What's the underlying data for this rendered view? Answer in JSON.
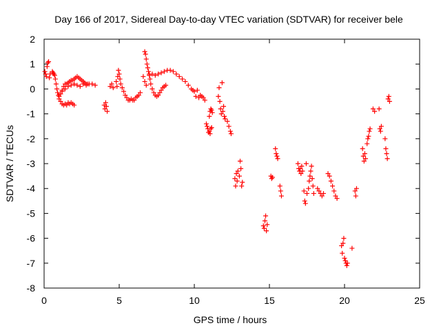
{
  "chart_data": {
    "type": "scatter",
    "title": "Day 166 of 2017, Sidereal Day-to-day VTEC variation (SDTVAR) for receiver bele",
    "xlabel": "GPS time / hours",
    "ylabel": "SDTVAR / TECUs",
    "xlim": [
      0,
      25
    ],
    "ylim": [
      -8,
      2
    ],
    "xticks": [
      0,
      5,
      10,
      15,
      20,
      25
    ],
    "yticks": [
      2,
      1,
      0,
      -1,
      -2,
      -3,
      -4,
      -5,
      -6,
      -7,
      -8
    ],
    "grid": false,
    "marker": "plus",
    "color": "#ff0000",
    "series": [
      {
        "name": "SDTVAR",
        "points": [
          [
            0.05,
            0.7
          ],
          [
            0.1,
            0.6
          ],
          [
            0.15,
            0.5
          ],
          [
            0.2,
            0.9
          ],
          [
            0.25,
            1.05
          ],
          [
            0.3,
            1.1
          ],
          [
            0.35,
            0.45
          ],
          [
            0.4,
            0.6
          ],
          [
            0.55,
            0.7
          ],
          [
            0.6,
            0.65
          ],
          [
            0.65,
            0.6
          ],
          [
            0.7,
            0.55
          ],
          [
            0.75,
            0.4
          ],
          [
            0.8,
            0.2
          ],
          [
            0.85,
            0.0
          ],
          [
            0.9,
            -0.15
          ],
          [
            0.95,
            -0.25
          ],
          [
            1.0,
            -0.3
          ],
          [
            1.1,
            -0.2
          ],
          [
            1.2,
            -0.05
          ],
          [
            1.3,
            0.1
          ],
          [
            1.4,
            0.2
          ],
          [
            1.5,
            0.2
          ],
          [
            1.6,
            0.25
          ],
          [
            1.7,
            0.3
          ],
          [
            1.8,
            0.35
          ],
          [
            1.9,
            0.35
          ],
          [
            2.0,
            0.4
          ],
          [
            2.1,
            0.45
          ],
          [
            2.2,
            0.5
          ],
          [
            2.3,
            0.45
          ],
          [
            2.4,
            0.4
          ],
          [
            2.5,
            0.35
          ],
          [
            2.6,
            0.3
          ],
          [
            2.7,
            0.25
          ],
          [
            2.8,
            0.2
          ],
          [
            2.9,
            0.2
          ],
          [
            3.0,
            0.2
          ],
          [
            3.2,
            0.2
          ],
          [
            3.4,
            0.15
          ],
          [
            1.0,
            -0.4
          ],
          [
            1.1,
            -0.5
          ],
          [
            1.2,
            -0.6
          ],
          [
            1.3,
            -0.65
          ],
          [
            1.4,
            -0.6
          ],
          [
            1.5,
            -0.65
          ],
          [
            1.6,
            -0.55
          ],
          [
            1.7,
            -0.6
          ],
          [
            1.8,
            -0.55
          ],
          [
            1.9,
            -0.6
          ],
          [
            2.0,
            -0.65
          ],
          [
            1.2,
            -0.1
          ],
          [
            1.4,
            0.0
          ],
          [
            1.6,
            0.1
          ],
          [
            1.8,
            0.15
          ],
          [
            2.0,
            0.2
          ],
          [
            2.2,
            0.15
          ],
          [
            2.4,
            0.1
          ],
          [
            2.6,
            0.2
          ],
          [
            2.8,
            0.15
          ],
          [
            4.0,
            -0.65
          ],
          [
            4.05,
            -0.8
          ],
          [
            4.1,
            -0.55
          ],
          [
            4.15,
            -0.7
          ],
          [
            4.2,
            -0.9
          ],
          [
            4.4,
            0.1
          ],
          [
            4.5,
            0.2
          ],
          [
            4.6,
            0.05
          ],
          [
            4.8,
            0.3
          ],
          [
            4.85,
            0.1
          ],
          [
            4.9,
            0.5
          ],
          [
            4.95,
            0.75
          ],
          [
            5.0,
            0.6
          ],
          [
            5.05,
            0.4
          ],
          [
            5.1,
            0.2
          ],
          [
            5.2,
            0.05
          ],
          [
            5.3,
            -0.1
          ],
          [
            5.4,
            -0.25
          ],
          [
            5.5,
            -0.35
          ],
          [
            5.6,
            -0.45
          ],
          [
            5.7,
            -0.45
          ],
          [
            5.8,
            -0.4
          ],
          [
            5.9,
            -0.45
          ],
          [
            6.0,
            -0.45
          ],
          [
            6.1,
            -0.35
          ],
          [
            6.2,
            -0.3
          ],
          [
            6.3,
            -0.25
          ],
          [
            6.4,
            -0.15
          ],
          [
            6.7,
            1.5
          ],
          [
            6.75,
            1.4
          ],
          [
            6.8,
            1.2
          ],
          [
            6.85,
            1.0
          ],
          [
            6.9,
            0.85
          ],
          [
            6.95,
            0.7
          ],
          [
            7.0,
            0.6
          ],
          [
            7.05,
            0.4
          ],
          [
            7.1,
            0.2
          ],
          [
            7.2,
            0.0
          ],
          [
            7.3,
            -0.15
          ],
          [
            7.4,
            -0.25
          ],
          [
            7.5,
            -0.3
          ],
          [
            7.6,
            -0.25
          ],
          [
            7.7,
            -0.15
          ],
          [
            7.8,
            -0.05
          ],
          [
            7.9,
            0.05
          ],
          [
            8.0,
            0.1
          ],
          [
            8.1,
            0.15
          ],
          [
            6.6,
            0.5
          ],
          [
            6.7,
            0.3
          ],
          [
            6.8,
            0.15
          ],
          [
            7.0,
            0.55
          ],
          [
            7.2,
            0.6
          ],
          [
            7.4,
            0.55
          ],
          [
            7.6,
            0.6
          ],
          [
            7.8,
            0.65
          ],
          [
            8.0,
            0.7
          ],
          [
            8.2,
            0.75
          ],
          [
            8.4,
            0.75
          ],
          [
            8.6,
            0.7
          ],
          [
            8.8,
            0.6
          ],
          [
            9.0,
            0.5
          ],
          [
            9.2,
            0.4
          ],
          [
            9.4,
            0.3
          ],
          [
            9.6,
            0.15
          ],
          [
            9.8,
            0.0
          ],
          [
            9.9,
            -0.05
          ],
          [
            10.0,
            -0.1
          ],
          [
            10.1,
            -0.3
          ],
          [
            10.2,
            -0.05
          ],
          [
            10.3,
            -0.35
          ],
          [
            10.4,
            -0.25
          ],
          [
            10.5,
            -0.3
          ],
          [
            10.6,
            -0.35
          ],
          [
            10.7,
            -0.45
          ],
          [
            10.8,
            -1.4
          ],
          [
            10.85,
            -1.5
          ],
          [
            10.9,
            -1.6
          ],
          [
            10.95,
            -1.75
          ],
          [
            11.0,
            -1.7
          ],
          [
            11.05,
            -1.8
          ],
          [
            11.1,
            -1.6
          ],
          [
            11.15,
            -1.55
          ],
          [
            11.0,
            -1.1
          ],
          [
            11.05,
            -0.9
          ],
          [
            11.1,
            -0.8
          ],
          [
            11.15,
            -0.85
          ],
          [
            11.2,
            -0.95
          ],
          [
            11.6,
            -0.3
          ],
          [
            11.65,
            0.05
          ],
          [
            11.7,
            -0.5
          ],
          [
            11.75,
            -0.8
          ],
          [
            11.8,
            -1.0
          ],
          [
            11.85,
            0.25
          ],
          [
            11.9,
            -0.9
          ],
          [
            11.95,
            -0.7
          ],
          [
            12.0,
            -1.1
          ],
          [
            12.05,
            -1.2
          ],
          [
            12.2,
            -1.3
          ],
          [
            12.3,
            -1.5
          ],
          [
            12.4,
            -1.7
          ],
          [
            12.45,
            -1.8
          ],
          [
            12.7,
            -3.6
          ],
          [
            12.75,
            -3.9
          ],
          [
            12.8,
            -3.4
          ],
          [
            12.85,
            -3.7
          ],
          [
            12.9,
            -3.3
          ],
          [
            13.0,
            -3.5
          ],
          [
            13.05,
            -2.9
          ],
          [
            13.1,
            -3.2
          ],
          [
            13.15,
            -3.9
          ],
          [
            13.2,
            -3.75
          ],
          [
            14.6,
            -5.5
          ],
          [
            14.65,
            -5.6
          ],
          [
            14.7,
            -5.3
          ],
          [
            14.75,
            -5.1
          ],
          [
            14.8,
            -5.7
          ],
          [
            14.85,
            -5.45
          ],
          [
            15.1,
            -3.5
          ],
          [
            15.15,
            -3.6
          ],
          [
            15.2,
            -3.55
          ],
          [
            15.4,
            -2.4
          ],
          [
            15.45,
            -2.6
          ],
          [
            15.5,
            -2.7
          ],
          [
            15.55,
            -2.8
          ],
          [
            15.7,
            -3.9
          ],
          [
            15.75,
            -4.1
          ],
          [
            15.8,
            -4.3
          ],
          [
            16.9,
            -3.0
          ],
          [
            16.95,
            -3.2
          ],
          [
            17.0,
            -3.3
          ],
          [
            17.05,
            -3.2
          ],
          [
            17.1,
            -3.4
          ],
          [
            17.15,
            -3.1
          ],
          [
            17.2,
            -3.3
          ],
          [
            17.3,
            -4.1
          ],
          [
            17.35,
            -4.5
          ],
          [
            17.4,
            -4.6
          ],
          [
            17.45,
            -3.0
          ],
          [
            17.5,
            -4.2
          ],
          [
            17.6,
            -4.0
          ],
          [
            17.65,
            -3.7
          ],
          [
            17.7,
            -3.5
          ],
          [
            17.75,
            -3.3
          ],
          [
            17.8,
            -3.1
          ],
          [
            17.85,
            -3.6
          ],
          [
            17.9,
            -3.9
          ],
          [
            17.95,
            -4.2
          ],
          [
            18.2,
            -4.0
          ],
          [
            18.3,
            -4.1
          ],
          [
            18.4,
            -4.2
          ],
          [
            18.5,
            -4.3
          ],
          [
            18.6,
            -4.2
          ],
          [
            18.9,
            -3.4
          ],
          [
            19.0,
            -3.5
          ],
          [
            19.1,
            -3.7
          ],
          [
            19.2,
            -3.9
          ],
          [
            19.3,
            -4.1
          ],
          [
            19.4,
            -4.3
          ],
          [
            19.5,
            -4.4
          ],
          [
            19.8,
            -6.3
          ],
          [
            19.85,
            -6.6
          ],
          [
            19.9,
            -6.2
          ],
          [
            19.95,
            -6.0
          ],
          [
            20.0,
            -6.8
          ],
          [
            20.05,
            -6.9
          ],
          [
            20.1,
            -7.0
          ],
          [
            20.15,
            -7.1
          ],
          [
            20.2,
            -7.0
          ],
          [
            20.5,
            -6.4
          ],
          [
            20.7,
            -4.1
          ],
          [
            20.75,
            -4.3
          ],
          [
            20.8,
            -4.0
          ],
          [
            21.2,
            -2.4
          ],
          [
            21.25,
            -2.7
          ],
          [
            21.3,
            -2.9
          ],
          [
            21.35,
            -2.6
          ],
          [
            21.4,
            -2.8
          ],
          [
            21.5,
            -2.2
          ],
          [
            21.55,
            -2.0
          ],
          [
            21.6,
            -1.9
          ],
          [
            21.65,
            -1.7
          ],
          [
            21.7,
            -1.6
          ],
          [
            21.9,
            -0.8
          ],
          [
            22.0,
            -0.9
          ],
          [
            22.3,
            -0.8
          ],
          [
            22.35,
            -1.6
          ],
          [
            22.4,
            -1.7
          ],
          [
            22.45,
            -1.5
          ],
          [
            22.7,
            -2.0
          ],
          [
            22.75,
            -2.4
          ],
          [
            22.8,
            -2.6
          ],
          [
            22.85,
            -2.8
          ],
          [
            22.9,
            -0.4
          ],
          [
            22.95,
            -0.3
          ],
          [
            23.0,
            -0.5
          ]
        ]
      }
    ]
  }
}
